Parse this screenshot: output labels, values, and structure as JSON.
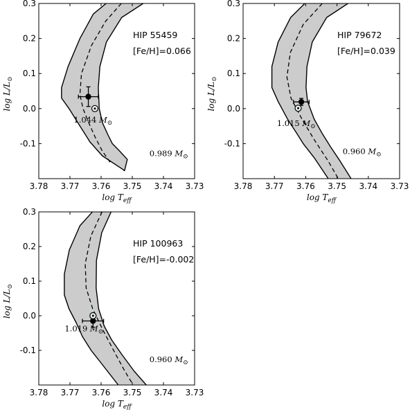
{
  "chart_data": [
    {
      "type": "line",
      "star": "HIP 55459",
      "feh_label": "[Fe/H]=0.066",
      "xlabel": "log T_eff",
      "ylabel": "log L/L_sun",
      "xlim": [
        3.78,
        3.73
      ],
      "ylim": [
        -0.2,
        0.3
      ],
      "x_ticks": [
        "3.78",
        "3.77",
        "3.76",
        "3.75",
        "3.74",
        "3.73"
      ],
      "y_ticks": [
        "0.3",
        "0.2",
        "0.1",
        "0.0",
        "-0.1"
      ],
      "upper_mass_label": "1.044",
      "lower_mass_label": "0.989",
      "upper_label_pos": [
        3.7688,
        -0.04
      ],
      "lower_label_pos": [
        3.7445,
        -0.136
      ],
      "band_left": {
        "x": [
          3.7584,
          3.7625,
          3.7668,
          3.7706,
          3.7727,
          3.7727,
          3.7703,
          3.7675,
          3.7657,
          3.7636,
          3.7596,
          3.7528
        ],
        "y": [
          0.3,
          0.27,
          0.2,
          0.12,
          0.06,
          0.03,
          0.0,
          -0.04,
          -0.065,
          -0.095,
          -0.135,
          -0.175
        ]
      },
      "band_right": {
        "x": [
          3.7465,
          3.7534,
          3.7583,
          3.7604,
          3.7609,
          3.7606,
          3.7596,
          3.7578,
          3.7564,
          3.7542,
          3.7516
        ],
        "y": [
          0.3,
          0.26,
          0.19,
          0.12,
          0.06,
          0.0,
          -0.04,
          -0.075,
          -0.1,
          -0.12,
          -0.145
        ]
      },
      "band_tip": {
        "x": 3.7525,
        "y": -0.178
      },
      "dashed_track": {
        "x": [
          3.7535,
          3.7585,
          3.7631,
          3.7663,
          3.7668,
          3.7658,
          3.764,
          3.762,
          3.7597,
          3.757
        ],
        "y": [
          0.3,
          0.25,
          0.18,
          0.1,
          0.04,
          0.0,
          -0.04,
          -0.08,
          -0.12,
          -0.155
        ]
      },
      "star_point": {
        "x": 3.7641,
        "y": 0.034,
        "xerr": 0.0032,
        "yerr": 0.028
      },
      "model_point": {
        "x": 3.762,
        "y": 0.0
      }
    },
    {
      "type": "line",
      "star": "HIP 79672",
      "feh_label": "[Fe/H]=0.039",
      "xlabel": "log T_eff",
      "ylabel": "log L/L_sun",
      "xlim": [
        3.78,
        3.73
      ],
      "ylim": [
        -0.2,
        0.3
      ],
      "x_ticks": [
        "3.78",
        "3.77",
        "3.76",
        "3.75",
        "3.74",
        "3.73"
      ],
      "y_ticks": [
        "0.3",
        "0.2",
        "0.1",
        "0.0",
        "-0.1"
      ],
      "upper_mass_label": "1.015",
      "lower_mass_label": "0.960",
      "upper_label_pos": [
        3.7692,
        -0.05
      ],
      "lower_label_pos": [
        3.7482,
        -0.13
      ],
      "band_left": {
        "x": [
          3.7603,
          3.7648,
          3.7688,
          3.7708,
          3.7708,
          3.7688,
          3.7658,
          3.7629,
          3.7608,
          3.7573,
          3.7528
        ],
        "y": [
          0.3,
          0.26,
          0.19,
          0.12,
          0.06,
          0.02,
          -0.03,
          -0.07,
          -0.1,
          -0.14,
          -0.2
        ]
      },
      "band_right": {
        "x": [
          3.7465,
          3.7533,
          3.7579,
          3.7596,
          3.7599,
          3.7594,
          3.7573,
          3.7548,
          3.752,
          3.749,
          3.7455
        ],
        "y": [
          0.3,
          0.26,
          0.19,
          0.12,
          0.06,
          0.02,
          -0.03,
          -0.07,
          -0.11,
          -0.15,
          -0.2
        ]
      },
      "band_tip": null,
      "dashed_track": {
        "x": [
          3.7547,
          3.7608,
          3.7649,
          3.766,
          3.7647,
          3.7612,
          3.7572,
          3.7528,
          3.7496
        ],
        "y": [
          0.3,
          0.24,
          0.16,
          0.09,
          0.03,
          -0.03,
          -0.09,
          -0.15,
          -0.2
        ]
      },
      "star_point": {
        "x": 3.7614,
        "y": 0.019,
        "xerr": 0.0025,
        "yerr": 0.01
      },
      "model_point": {
        "x": 3.7624,
        "y": 0.001
      }
    },
    {
      "type": "line",
      "star": "HIP 100963",
      "feh_label": "[Fe/H]=-0.002",
      "xlabel": "log T_eff",
      "ylabel": "log L/L_sun",
      "xlim": [
        3.78,
        3.73
      ],
      "ylim": [
        -0.2,
        0.3
      ],
      "x_ticks": [
        "3.78",
        "3.77",
        "3.76",
        "3.75",
        "3.74",
        "3.73"
      ],
      "y_ticks": [
        "0.3",
        "0.2",
        "0.1",
        "0.0",
        "-0.1"
      ],
      "upper_mass_label": "1.019",
      "lower_mass_label": "0.960",
      "upper_label_pos": [
        3.7717,
        -0.045
      ],
      "lower_label_pos": [
        3.7445,
        -0.134
      ],
      "band_left": {
        "x": [
          3.7628,
          3.7668,
          3.7702,
          3.7718,
          3.7718,
          3.7703,
          3.768,
          3.766,
          3.7632,
          3.7597,
          3.7545
        ],
        "y": [
          0.3,
          0.26,
          0.19,
          0.12,
          0.06,
          0.02,
          -0.02,
          -0.06,
          -0.1,
          -0.14,
          -0.2
        ]
      },
      "band_right": {
        "x": [
          3.7568,
          3.7598,
          3.7615,
          3.7616,
          3.7608,
          3.759,
          3.7566,
          3.7535,
          3.7494,
          3.7455
        ],
        "y": [
          0.3,
          0.24,
          0.16,
          0.08,
          0.02,
          -0.03,
          -0.07,
          -0.11,
          -0.16,
          -0.2
        ]
      },
      "band_tip": null,
      "dashed_track": {
        "x": [
          3.7597,
          3.7633,
          3.7651,
          3.7648,
          3.7627,
          3.7595,
          3.756,
          3.7524,
          3.7497
        ],
        "y": [
          0.3,
          0.23,
          0.15,
          0.08,
          0.02,
          -0.04,
          -0.1,
          -0.16,
          -0.2
        ]
      },
      "star_point": {
        "x": 3.7626,
        "y": -0.015,
        "xerr": 0.0034,
        "yerr": 0.018
      },
      "model_point": {
        "x": 3.7626,
        "y": 0.0
      }
    }
  ]
}
